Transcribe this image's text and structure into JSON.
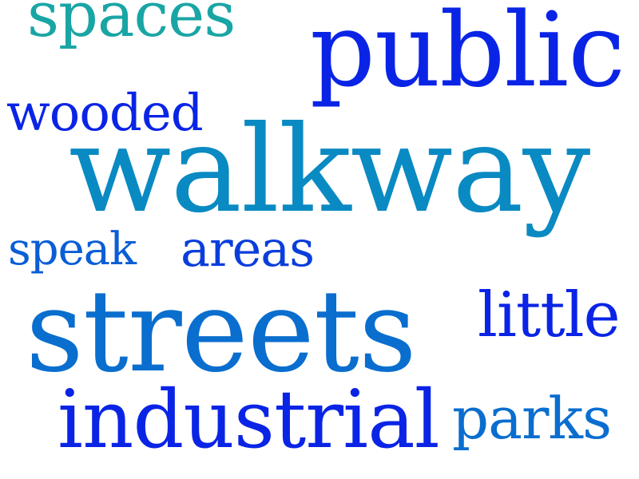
{
  "words": [
    {
      "key": "spaces",
      "text": "spaces",
      "color": "#1aa5a5"
    },
    {
      "key": "public",
      "text": "public",
      "color": "#0a24e6"
    },
    {
      "key": "wooded",
      "text": "wooded",
      "color": "#0a24e6"
    },
    {
      "key": "walkway",
      "text": "walkway",
      "color": "#0a8ac2"
    },
    {
      "key": "speak",
      "text": "speak",
      "color": "#0a5ed6"
    },
    {
      "key": "areas",
      "text": "areas",
      "color": "#0a3edc"
    },
    {
      "key": "little",
      "text": "little",
      "color": "#0a24e6"
    },
    {
      "key": "streets",
      "text": "streets",
      "color": "#0a6ecf"
    },
    {
      "key": "industrial",
      "text": "industrial",
      "color": "#0a24e6"
    },
    {
      "key": "parks",
      "text": "parks",
      "color": "#0a6ecf"
    }
  ]
}
